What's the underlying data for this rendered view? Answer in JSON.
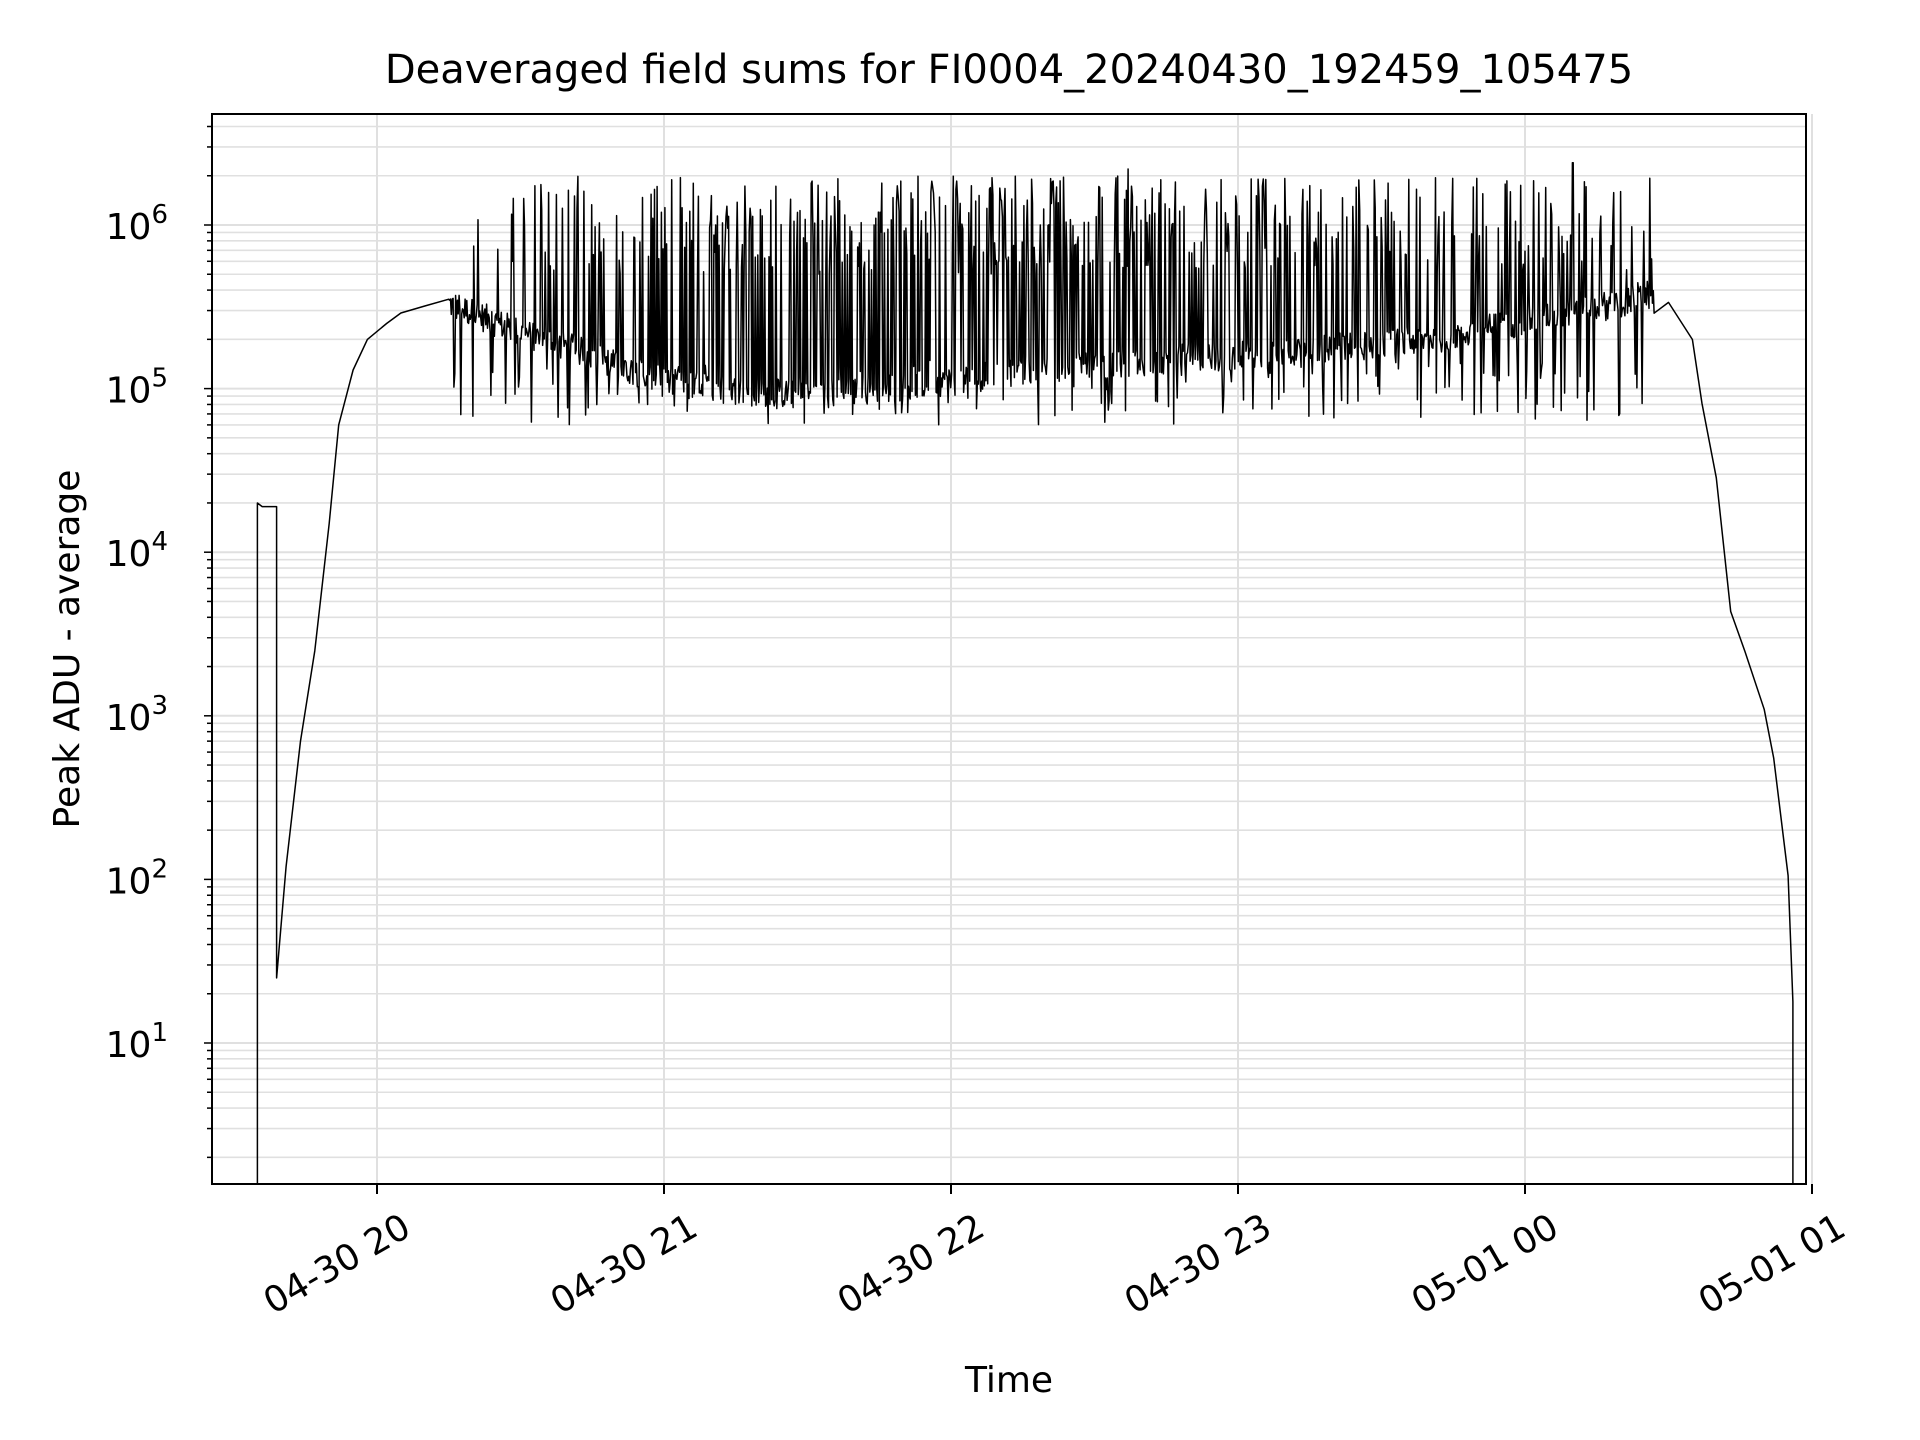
{
  "chart_data": {
    "type": "line",
    "title": "Deaveraged field sums for FI0004_20240430_192459_105475",
    "xlabel": "Time",
    "ylabel": "Peak ADU - average",
    "x_ticks": [
      "04-30 20",
      "04-30 21",
      "04-30 22",
      "04-30 23",
      "05-01 00",
      "05-01 01"
    ],
    "y_ticks": [
      {
        "base": "10",
        "exp": "1"
      },
      {
        "base": "10",
        "exp": "2"
      },
      {
        "base": "10",
        "exp": "3"
      },
      {
        "base": "10",
        "exp": "4"
      },
      {
        "base": "10",
        "exp": "5"
      },
      {
        "base": "10",
        "exp": "6"
      }
    ],
    "x_scale": "time",
    "y_scale": "log",
    "xlim": [
      "2024-04-30 19:25",
      "2024-05-01 01:01"
    ],
    "ylim": [
      1.2,
      4500000
    ],
    "grid": true,
    "line_color": "#000000",
    "grid_color": "#e0e0e0",
    "series": [
      {
        "x": [
          "2024-04-30 19:35",
          "2024-04-30 19:35",
          "2024-04-30 19:36",
          "2024-04-30 19:39",
          "2024-04-30 19:39",
          "2024-04-30 19:41",
          "2024-04-30 19:44",
          "2024-04-30 19:47",
          "2024-04-30 19:50",
          "2024-04-30 19:52",
          "2024-04-30 19:55",
          "2024-04-30 19:58",
          "2024-04-30 20:02",
          "2024-04-30 20:05",
          "2024-04-30 20:10",
          "2024-04-30 20:15",
          "2024-04-30 20:20",
          "2024-04-30 20:30",
          "2024-04-30 20:40",
          "2024-04-30 20:50",
          "2024-04-30 21:00",
          "2024-04-30 21:10",
          "2024-04-30 21:20",
          "2024-04-30 21:30",
          "2024-04-30 21:45",
          "2024-04-30 22:00",
          "2024-04-30 22:15",
          "2024-04-30 22:30",
          "2024-04-30 22:45",
          "2024-04-30 23:00",
          "2024-04-30 23:15",
          "2024-04-30 23:30",
          "2024-04-30 23:45",
          "2024-05-01 00:00",
          "2024-05-01 00:10",
          "2024-05-01 00:20",
          "2024-05-01 00:25",
          "2024-05-01 00:30",
          "2024-05-01 00:35",
          "2024-05-01 00:37",
          "2024-05-01 00:40",
          "2024-05-01 00:43",
          "2024-05-01 00:46",
          "2024-05-01 00:50",
          "2024-05-01 00:52",
          "2024-05-01 00:55",
          "2024-05-01 00:56",
          "2024-05-01 00:56"
        ],
        "y": [
          1.2,
          20000,
          19000,
          19000,
          25,
          120,
          700,
          2500,
          15000,
          60000,
          130000,
          200000,
          250000,
          290000,
          320000,
          330000,
          290000,
          220000,
          180000,
          140000,
          110000,
          100000,
          95000,
          90000,
          100000,
          110000,
          130000,
          140000,
          150000,
          160000,
          175000,
          185000,
          210000,
          260000,
          300000,
          330000,
          380000,
          300000,
          200000,
          80000,
          30000,
          4000,
          2500,
          1200,
          600,
          100,
          20,
          1.2
        ],
        "noise": {
          "x_range": [
            "2024-04-30 20:15",
            "2024-05-01 00:27"
          ],
          "spike_high_y": [
            500000,
            2000000
          ],
          "dip_low_y": [
            60000,
            150000
          ],
          "max_spikes": [
            {
              "x": "2024-05-01 00:10",
              "y": 2400000
            },
            {
              "x": "2024-04-30 22:37",
              "y": 2200000
            },
            {
              "x": "2024-05-01 00:20",
              "y": 1600000
            }
          ]
        }
      }
    ]
  }
}
